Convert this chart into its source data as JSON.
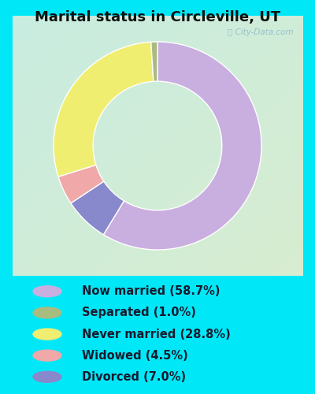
{
  "title": "Marital status in Circleville, UT",
  "slices": [
    58.7,
    1.0,
    28.8,
    4.5,
    7.0
  ],
  "labels": [
    "Now married (58.7%)",
    "Separated (1.0%)",
    "Never married (28.8%)",
    "Widowed (4.5%)",
    "Divorced (7.0%)"
  ],
  "colors": [
    "#c9aee0",
    "#a8bc80",
    "#f0ee70",
    "#f0a8a8",
    "#8888cc"
  ],
  "chart_bg_top_left": "#c8ede0",
  "chart_bg_bottom_right": "#d8ecd0",
  "outer_background": "#00e8f8",
  "title_fontsize": 13,
  "legend_fontsize": 10.5,
  "watermark": "City-Data.com",
  "slice_order": [
    0,
    4,
    3,
    2,
    1
  ],
  "donut_width": 0.38
}
